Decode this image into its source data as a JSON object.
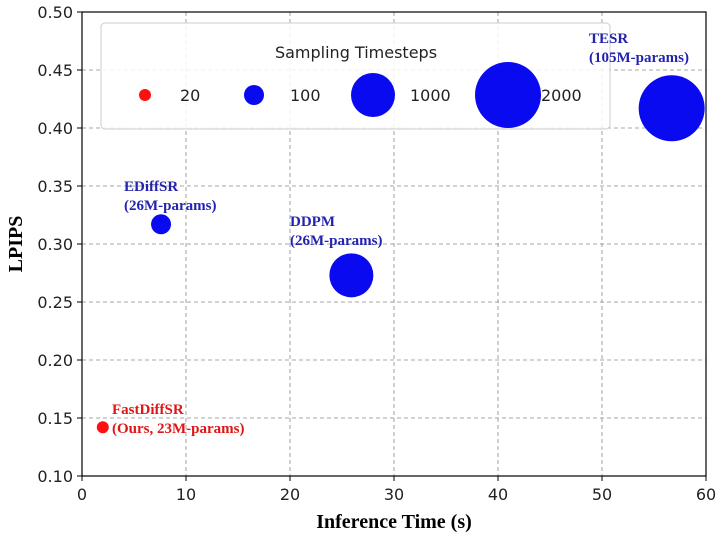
{
  "chart_data": {
    "type": "scatter",
    "xlabel": "Inference Time (s)",
    "ylabel": "LPIPS",
    "xlim": [
      0,
      60
    ],
    "ylim": [
      0.1,
      0.5
    ],
    "x_ticks": [
      "0",
      "10",
      "20",
      "30",
      "40",
      "50",
      "60"
    ],
    "y_ticks": [
      "0.10",
      "0.15",
      "0.20",
      "0.25",
      "0.30",
      "0.35",
      "0.40",
      "0.45",
      "0.50"
    ],
    "grid": true,
    "legend": {
      "title": "Sampling Timesteps",
      "placement": "top",
      "entries": [
        {
          "label": "20",
          "timesteps": 20,
          "color": "#ff1010"
        },
        {
          "label": "100",
          "timesteps": 100,
          "color": "#0a0af0"
        },
        {
          "label": "1000",
          "timesteps": 1000,
          "color": "#0a0af0"
        },
        {
          "label": "2000",
          "timesteps": 2000,
          "color": "#0a0af0"
        }
      ]
    },
    "points": [
      {
        "x": 2.0,
        "y": 0.142,
        "timesteps": 20,
        "color": "#ff1010",
        "label_lines": [
          "FastDiffSR",
          "(Ours, 23M-params)"
        ],
        "label_color": "#e01515"
      },
      {
        "x": 7.6,
        "y": 0.317,
        "timesteps": 100,
        "color": "#0a0af0",
        "label_lines": [
          "EDiffSR",
          "(26M-params)"
        ],
        "label_color": "#2323b0"
      },
      {
        "x": 25.9,
        "y": 0.273,
        "timesteps": 1000,
        "color": "#0a0af0",
        "label_lines": [
          "DDPM",
          "(26M-params)"
        ],
        "label_color": "#2323b0"
      },
      {
        "x": 56.7,
        "y": 0.417,
        "timesteps": 2000,
        "color": "#0a0af0",
        "label_lines": [
          "TESR",
          "(105M-params)"
        ],
        "label_color": "#2323b0"
      }
    ]
  }
}
